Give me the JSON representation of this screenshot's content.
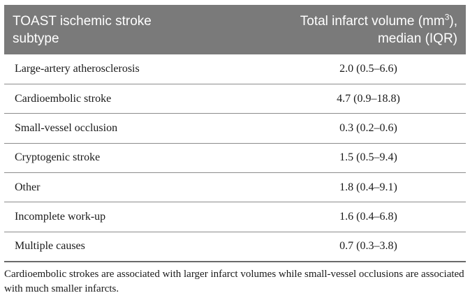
{
  "table": {
    "header": {
      "col1_line1": "TOAST ischemic stroke",
      "col1_line2": "subtype",
      "col2_line1_pre": "Total infarct volume (mm",
      "col2_line1_sup": "3",
      "col2_line1_post": "),",
      "col2_line2": "median (IQR)"
    },
    "rows": [
      {
        "subtype": "Large-artery atherosclerosis",
        "volume": "2.0 (0.5–6.6)"
      },
      {
        "subtype": "Cardioembolic stroke",
        "volume": "4.7 (0.9–18.8)"
      },
      {
        "subtype": "Small-vessel occlusion",
        "volume": "0.3 (0.2–0.6)"
      },
      {
        "subtype": "Cryptogenic stroke",
        "volume": "1.5 (0.5–9.4)"
      },
      {
        "subtype": "Other",
        "volume": "1.8 (0.4–9.1)"
      },
      {
        "subtype": "Incomplete work-up",
        "volume": "1.6 (0.4–6.8)"
      },
      {
        "subtype": "Multiple causes",
        "volume": "0.7 (0.3–3.8)"
      }
    ],
    "header_bg": "#7a7a7a"
  },
  "footnote": "Cardioembolic strokes are associated with larger infarct volumes while small-vessel occlusions are associated with much smaller infarcts."
}
